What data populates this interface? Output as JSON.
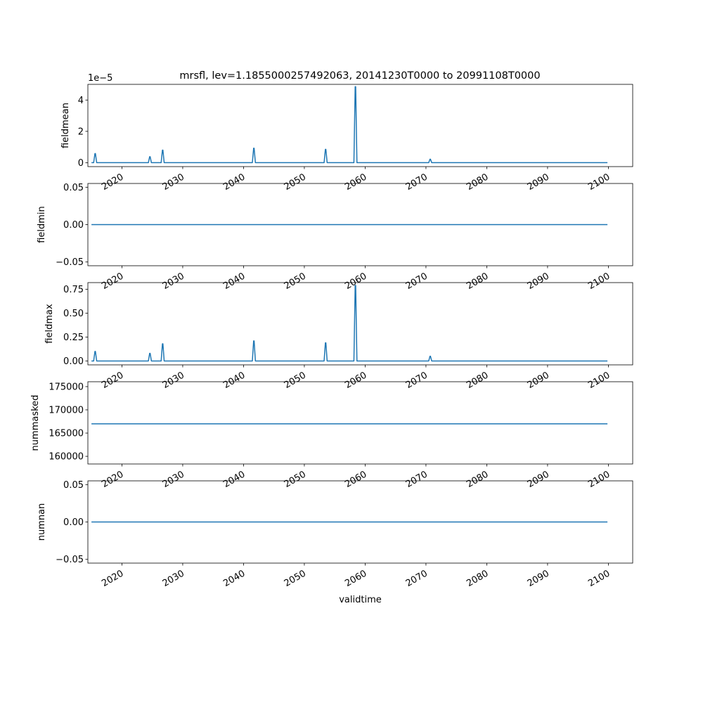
{
  "figure": {
    "title": "mrsfl, lev=1.1855000257492063, 20141230T0000 to 20991108T0000",
    "line_color": "#1f77b4"
  },
  "chart_data": [
    {
      "type": "line",
      "ylabel": "fieldmean",
      "offset_text": "1e−5",
      "xlim": [
        2014.4,
        2104.0
      ],
      "ylim": [
        -0.25,
        5.0
      ],
      "yticks": [
        0,
        2,
        4
      ],
      "ytick_labels": [
        "0",
        "2",
        "4"
      ],
      "xtick_labels": [
        "2020",
        "2030",
        "2040",
        "2050",
        "2060",
        "2070",
        "2080",
        "2090",
        "2100"
      ],
      "baseline": 0,
      "series": [
        {
          "x_start": 2014.99,
          "x_end": 2099.85,
          "spikes": [
            {
              "x": 2015.6,
              "y": 0.58
            },
            {
              "x": 2024.6,
              "y": 0.38
            },
            {
              "x": 2026.7,
              "y": 0.8
            },
            {
              "x": 2041.7,
              "y": 0.92
            },
            {
              "x": 2053.5,
              "y": 0.85
            },
            {
              "x": 2058.4,
              "y": 4.85
            },
            {
              "x": 2070.7,
              "y": 0.22
            }
          ]
        }
      ]
    },
    {
      "type": "line",
      "ylabel": "fieldmin",
      "xlim": [
        2014.4,
        2104.0
      ],
      "ylim": [
        -0.055,
        0.055
      ],
      "yticks": [
        -0.05,
        0,
        0.05
      ],
      "ytick_labels": [
        "−0.05",
        "0.00",
        "0.05"
      ],
      "xtick_labels": [
        "2020",
        "2030",
        "2040",
        "2050",
        "2060",
        "2070",
        "2080",
        "2090",
        "2100"
      ],
      "baseline": 0,
      "series": [
        {
          "x_start": 2014.99,
          "x_end": 2099.85,
          "spikes": []
        }
      ]
    },
    {
      "type": "line",
      "ylabel": "fieldmax",
      "xlim": [
        2014.4,
        2104.0
      ],
      "ylim": [
        -0.04,
        0.82
      ],
      "yticks": [
        0,
        0.25,
        0.5,
        0.75
      ],
      "ytick_labels": [
        "0.00",
        "0.25",
        "0.50",
        "0.75"
      ],
      "xtick_labels": [
        "2020",
        "2030",
        "2040",
        "2050",
        "2060",
        "2070",
        "2080",
        "2090",
        "2100"
      ],
      "baseline": 0,
      "series": [
        {
          "x_start": 2014.99,
          "x_end": 2099.85,
          "spikes": [
            {
              "x": 2015.6,
              "y": 0.1
            },
            {
              "x": 2024.6,
              "y": 0.08
            },
            {
              "x": 2026.7,
              "y": 0.18
            },
            {
              "x": 2041.7,
              "y": 0.21
            },
            {
              "x": 2053.5,
              "y": 0.19
            },
            {
              "x": 2058.4,
              "y": 0.79
            },
            {
              "x": 2070.7,
              "y": 0.05
            }
          ]
        }
      ]
    },
    {
      "type": "line",
      "ylabel": "nummasked",
      "xlim": [
        2014.4,
        2104.0
      ],
      "ylim": [
        158350,
        176050
      ],
      "yticks": [
        160000,
        165000,
        170000,
        175000
      ],
      "ytick_labels": [
        "160000",
        "165000",
        "170000",
        "175000"
      ],
      "xtick_labels": [
        "2020",
        "2030",
        "2040",
        "2050",
        "2060",
        "2070",
        "2080",
        "2090",
        "2100"
      ],
      "baseline": 167000,
      "series": [
        {
          "x_start": 2014.99,
          "x_end": 2099.85,
          "spikes": []
        }
      ]
    },
    {
      "type": "line",
      "ylabel": "numnan",
      "xlabel": "validtime",
      "xlim": [
        2014.4,
        2104.0
      ],
      "ylim": [
        -0.055,
        0.055
      ],
      "yticks": [
        -0.05,
        0,
        0.05
      ],
      "ytick_labels": [
        "−0.05",
        "0.00",
        "0.05"
      ],
      "xtick_labels": [
        "2020",
        "2030",
        "2040",
        "2050",
        "2060",
        "2070",
        "2080",
        "2090",
        "2100"
      ],
      "baseline": 0,
      "series": [
        {
          "x_start": 2014.99,
          "x_end": 2099.85,
          "spikes": []
        }
      ]
    }
  ]
}
